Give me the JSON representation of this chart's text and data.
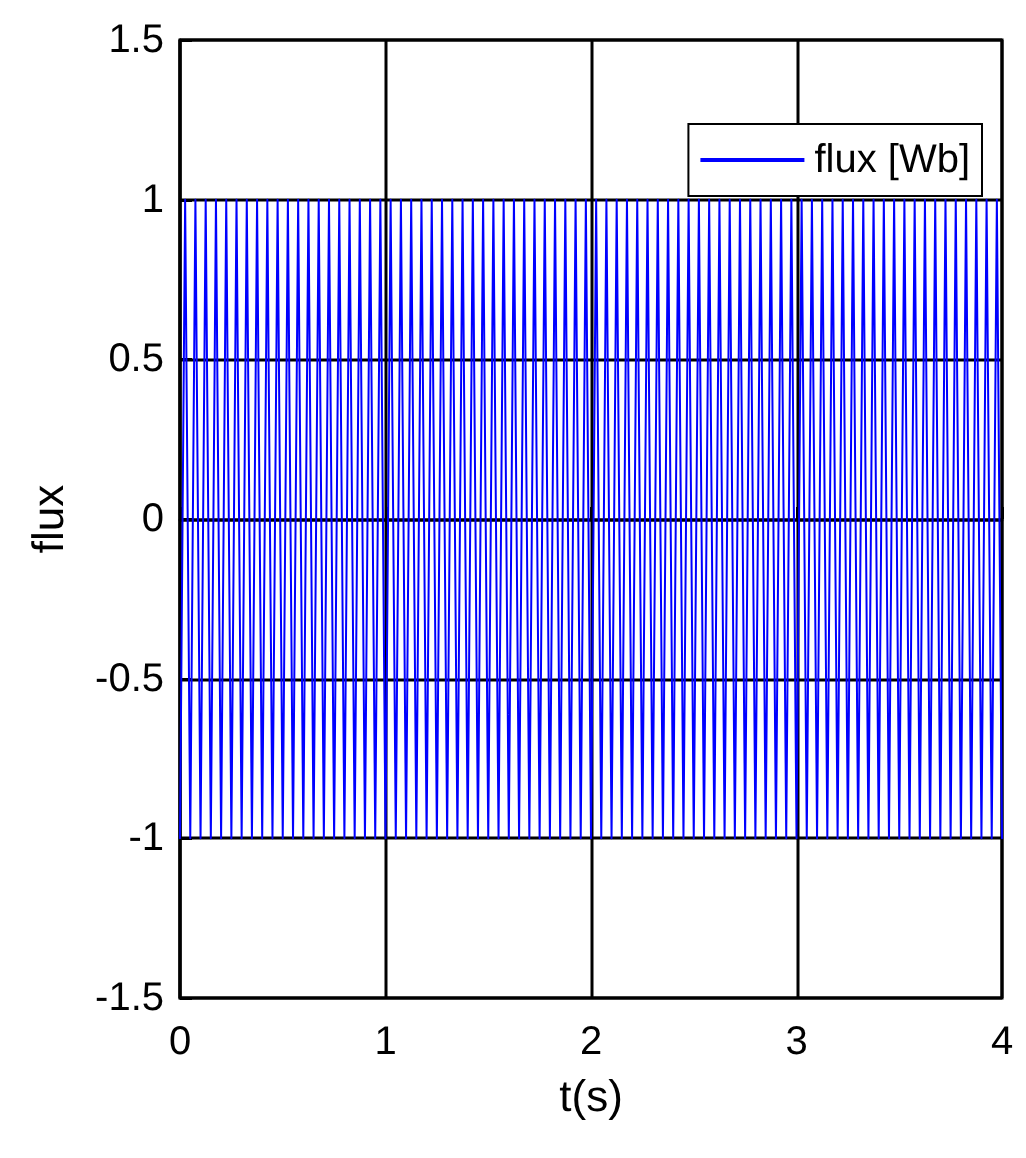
{
  "chart_data": {
    "type": "line",
    "xlabel": "t(s)",
    "ylabel": "flux",
    "xlim": [
      0,
      4
    ],
    "xticks": [
      0,
      1,
      2,
      3,
      4
    ],
    "ylim": [
      -1.5,
      1.5
    ],
    "yticks": [
      -1.5,
      -1,
      -0.5,
      0,
      0.5,
      1,
      1.5
    ],
    "grid": true,
    "legend": "top right",
    "marker": "none",
    "line_style": "solid",
    "series": [
      {
        "name": "flux [Wb]",
        "color": "#0000ff",
        "x": [
          0,
          0.025,
          0.05,
          0.075,
          0.1,
          0.125,
          0.15,
          0.175,
          0.2,
          0.225,
          0.25,
          0.275,
          0.3,
          0.325,
          0.35,
          0.375,
          0.4,
          0.425,
          0.45,
          0.475,
          0.5,
          0.525,
          0.55,
          0.575,
          0.6,
          0.625,
          0.65,
          0.675,
          0.7,
          0.725,
          0.75,
          0.775,
          0.8,
          0.825,
          0.85,
          0.875,
          0.9,
          0.925,
          0.95,
          0.975,
          1,
          1.025,
          1.05,
          1.075,
          1.1,
          1.125,
          1.15,
          1.175,
          1.2,
          1.225,
          1.25,
          1.275,
          1.3,
          1.325,
          1.35,
          1.375,
          1.4,
          1.425,
          1.45,
          1.475,
          1.5,
          1.525,
          1.55,
          1.575,
          1.6,
          1.625,
          1.65,
          1.675,
          1.7,
          1.725,
          1.75,
          1.775,
          1.8,
          1.825,
          1.85,
          1.875,
          1.9,
          1.925,
          1.95,
          1.975,
          2,
          2.025,
          2.05,
          2.075,
          2.1,
          2.125,
          2.15,
          2.175,
          2.2,
          2.225,
          2.25,
          2.275,
          2.3,
          2.325,
          2.35,
          2.375,
          2.4,
          2.425,
          2.45,
          2.475,
          2.5,
          2.525,
          2.55,
          2.575,
          2.6,
          2.625,
          2.65,
          2.675,
          2.7,
          2.725,
          2.75,
          2.775,
          2.8,
          2.825,
          2.85,
          2.875,
          2.9,
          2.925,
          2.95,
          2.975,
          3,
          3.025,
          3.05,
          3.075,
          3.1,
          3.125,
          3.15,
          3.175,
          3.2,
          3.225,
          3.25,
          3.275,
          3.3,
          3.325,
          3.35,
          3.375,
          3.4,
          3.425,
          3.45,
          3.475,
          3.5,
          3.525,
          3.55,
          3.575,
          3.6,
          3.625,
          3.65,
          3.675,
          3.7,
          3.725,
          3.75,
          3.775,
          3.8,
          3.825,
          3.85,
          3.875,
          3.9,
          3.925,
          3.95,
          3.975,
          4
        ],
        "values": [
          -1,
          1,
          -1,
          1,
          -1,
          1,
          -1,
          1,
          -1,
          1,
          -1,
          1,
          -1,
          1,
          -1,
          1,
          -1,
          1,
          -1,
          1,
          -1,
          1,
          -1,
          1,
          -1,
          1,
          -1,
          1,
          -1,
          1,
          -1,
          1,
          -1,
          1,
          -1,
          1,
          -1,
          1,
          -1,
          1,
          -1,
          1,
          -1,
          1,
          -1,
          1,
          -1,
          1,
          -1,
          1,
          -1,
          1,
          -1,
          1,
          -1,
          1,
          -1,
          1,
          -1,
          1,
          -1,
          1,
          -1,
          1,
          -1,
          1,
          -1,
          1,
          -1,
          1,
          -1,
          1,
          -1,
          1,
          -1,
          1,
          -1,
          1,
          -1,
          1,
          -1,
          1,
          -1,
          1,
          -1,
          1,
          -1,
          1,
          -1,
          1,
          -1,
          1,
          -1,
          1,
          -1,
          1,
          -1,
          1,
          -1,
          1,
          -1,
          1,
          -1,
          1,
          -1,
          1,
          -1,
          1,
          -1,
          1,
          -1,
          1,
          -1,
          1,
          -1,
          1,
          -1,
          1,
          -1,
          1,
          -1,
          1,
          -1,
          1,
          -1,
          1,
          -1,
          1,
          -1,
          1,
          -1,
          1,
          -1,
          1,
          -1,
          1,
          -1,
          1,
          -1,
          1,
          -1,
          1,
          -1,
          1,
          -1,
          1,
          -1,
          1,
          -1,
          1,
          -1,
          1,
          -1,
          1,
          -1,
          1,
          -1,
          1,
          -1,
          1,
          -1
        ]
      }
    ]
  }
}
